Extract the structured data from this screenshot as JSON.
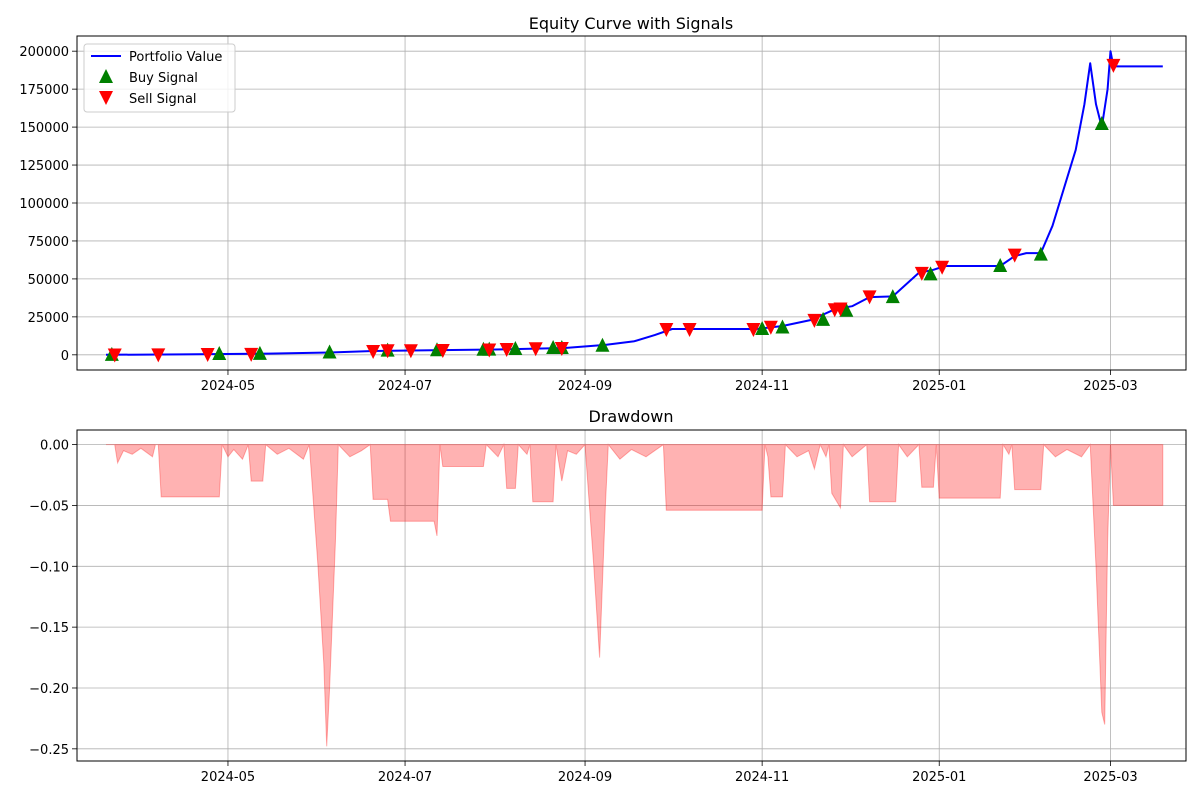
{
  "chart_data": [
    {
      "type": "line",
      "title": "Equity Curve with Signals",
      "xlabel": "",
      "ylabel": "",
      "x_tick_labels": [
        "2024-05",
        "2024-07",
        "2024-09",
        "2024-11",
        "2025-01",
        "2025-03"
      ],
      "y_tick_labels": [
        "0",
        "25000",
        "50000",
        "75000",
        "100000",
        "125000",
        "150000",
        "175000",
        "200000"
      ],
      "xlim": [
        "2024-03-10",
        "2025-03-27"
      ],
      "ylim": [
        -10000,
        210000
      ],
      "grid": true,
      "legend_position": "top-left",
      "series": [
        {
          "name": "Portfolio Value",
          "color": "#0000ff",
          "points": [
            [
              "2024-03-20",
              0
            ],
            [
              "2024-04-15",
              300
            ],
            [
              "2024-05-15",
              800
            ],
            [
              "2024-06-05",
              1500
            ],
            [
              "2024-06-20",
              2500
            ],
            [
              "2024-07-10",
              3000
            ],
            [
              "2024-08-01",
              3500
            ],
            [
              "2024-08-25",
              4500
            ],
            [
              "2024-09-08",
              6500
            ],
            [
              "2024-09-18",
              9000
            ],
            [
              "2024-09-25",
              13000
            ],
            [
              "2024-10-01",
              17000
            ],
            [
              "2024-10-30",
              17000
            ],
            [
              "2024-11-08",
              19000
            ],
            [
              "2024-11-18",
              23000
            ],
            [
              "2024-11-26",
              30000
            ],
            [
              "2024-12-02",
              32000
            ],
            [
              "2024-12-08",
              38000
            ],
            [
              "2024-12-16",
              38500
            ],
            [
              "2024-12-25",
              54000
            ],
            [
              "2024-12-30",
              56000
            ],
            [
              "2025-01-03",
              58500
            ],
            [
              "2025-01-22",
              58500
            ],
            [
              "2025-01-27",
              65000
            ],
            [
              "2025-01-31",
              67000
            ],
            [
              "2025-02-05",
              67000
            ],
            [
              "2025-02-09",
              85000
            ],
            [
              "2025-02-13",
              110000
            ],
            [
              "2025-02-17",
              135000
            ],
            [
              "2025-02-20",
              165000
            ],
            [
              "2025-02-22",
              192000
            ],
            [
              "2025-02-24",
              165000
            ],
            [
              "2025-02-26",
              150000
            ],
            [
              "2025-02-28",
              175000
            ],
            [
              "2025-03-01",
              200000
            ],
            [
              "2025-03-02",
              190000
            ],
            [
              "2025-03-19",
              190000
            ]
          ]
        },
        {
          "name": "Buy Signal",
          "color": "#008000",
          "marker": "triangle-up",
          "points": [
            [
              "2024-03-22",
              0
            ],
            [
              "2024-04-28",
              500
            ],
            [
              "2024-05-12",
              600
            ],
            [
              "2024-06-05",
              1500
            ],
            [
              "2024-06-25",
              2800
            ],
            [
              "2024-07-12",
              3000
            ],
            [
              "2024-07-28",
              3300
            ],
            [
              "2024-07-30",
              3400
            ],
            [
              "2024-08-08",
              3800
            ],
            [
              "2024-08-21",
              4500
            ],
            [
              "2024-08-24",
              4500
            ],
            [
              "2024-09-07",
              6000
            ],
            [
              "2024-11-01",
              17000
            ],
            [
              "2024-11-08",
              18000
            ],
            [
              "2024-11-22",
              23000
            ],
            [
              "2024-11-30",
              29000
            ],
            [
              "2024-12-16",
              38000
            ],
            [
              "2024-12-29",
              53000
            ],
            [
              "2025-01-22",
              58500
            ],
            [
              "2025-02-05",
              66000
            ],
            [
              "2025-02-26",
              152000
            ]
          ]
        },
        {
          "name": "Sell Signal",
          "color": "#ff0000",
          "marker": "triangle-down",
          "points": [
            [
              "2024-03-23",
              200
            ],
            [
              "2024-04-07",
              300
            ],
            [
              "2024-04-24",
              500
            ],
            [
              "2024-05-09",
              600
            ],
            [
              "2024-06-20",
              2500
            ],
            [
              "2024-06-25",
              3000
            ],
            [
              "2024-07-03",
              3000
            ],
            [
              "2024-07-14",
              3200
            ],
            [
              "2024-07-30",
              3500
            ],
            [
              "2024-08-05",
              3800
            ],
            [
              "2024-08-15",
              4300
            ],
            [
              "2024-08-24",
              4500
            ],
            [
              "2024-09-29",
              17000
            ],
            [
              "2024-10-07",
              17000
            ],
            [
              "2024-10-29",
              17000
            ],
            [
              "2024-11-04",
              18500
            ],
            [
              "2024-11-19",
              23000
            ],
            [
              "2024-11-26",
              30000
            ],
            [
              "2024-11-28",
              30500
            ],
            [
              "2024-12-08",
              38500
            ],
            [
              "2024-12-26",
              54000
            ],
            [
              "2025-01-02",
              58000
            ],
            [
              "2025-01-27",
              66000
            ],
            [
              "2025-03-02",
              191000
            ]
          ]
        }
      ]
    },
    {
      "type": "area",
      "title": "Drawdown",
      "xlabel": "",
      "ylabel": "",
      "x_tick_labels": [
        "2024-05",
        "2024-07",
        "2024-09",
        "2024-11",
        "2025-01",
        "2025-03"
      ],
      "y_tick_labels": [
        "0.00",
        "−0.05",
        "−0.10",
        "−0.15",
        "−0.20",
        "−0.25"
      ],
      "xlim": [
        "2024-03-10",
        "2025-03-27"
      ],
      "ylim": [
        -0.26,
        0.012
      ],
      "grid": true,
      "series": [
        {
          "color": "#ff0000",
          "fill_alpha": 0.3,
          "points": [
            [
              "2024-03-20",
              0
            ],
            [
              "2024-03-23",
              0
            ],
            [
              "2024-03-24",
              -0.015
            ],
            [
              "2024-03-26",
              -0.005
            ],
            [
              "2024-03-29",
              -0.008
            ],
            [
              "2024-04-01",
              -0.003
            ],
            [
              "2024-04-05",
              -0.01
            ],
            [
              "2024-04-06",
              0
            ],
            [
              "2024-04-07",
              0
            ],
            [
              "2024-04-08",
              -0.043
            ],
            [
              "2024-04-28",
              -0.043
            ],
            [
              "2024-04-29",
              0
            ],
            [
              "2024-05-01",
              -0.01
            ],
            [
              "2024-05-03",
              -0.004
            ],
            [
              "2024-05-06",
              -0.012
            ],
            [
              "2024-05-08",
              0
            ],
            [
              "2024-05-09",
              -0.03
            ],
            [
              "2024-05-13",
              -0.03
            ],
            [
              "2024-05-14",
              0
            ],
            [
              "2024-05-18",
              -0.008
            ],
            [
              "2024-05-22",
              -0.003
            ],
            [
              "2024-05-27",
              -0.012
            ],
            [
              "2024-05-29",
              0
            ],
            [
              "2024-06-01",
              -0.1
            ],
            [
              "2024-06-03",
              -0.18
            ],
            [
              "2024-06-04",
              -0.248
            ],
            [
              "2024-06-05",
              -0.2
            ],
            [
              "2024-06-07",
              -0.08
            ],
            [
              "2024-06-08",
              0
            ],
            [
              "2024-06-12",
              -0.01
            ],
            [
              "2024-06-16",
              -0.005
            ],
            [
              "2024-06-19",
              0
            ],
            [
              "2024-06-20",
              -0.045
            ],
            [
              "2024-06-25",
              -0.045
            ],
            [
              "2024-06-26",
              -0.063
            ],
            [
              "2024-07-11",
              -0.063
            ],
            [
              "2024-07-12",
              -0.075
            ],
            [
              "2024-07-13",
              0
            ],
            [
              "2024-07-14",
              -0.018
            ],
            [
              "2024-07-28",
              -0.018
            ],
            [
              "2024-07-29",
              0
            ],
            [
              "2024-08-02",
              -0.01
            ],
            [
              "2024-08-04",
              0
            ],
            [
              "2024-08-05",
              -0.036
            ],
            [
              "2024-08-08",
              -0.036
            ],
            [
              "2024-08-09",
              0
            ],
            [
              "2024-08-12",
              -0.008
            ],
            [
              "2024-08-13",
              0
            ],
            [
              "2024-08-14",
              -0.047
            ],
            [
              "2024-08-21",
              -0.047
            ],
            [
              "2024-08-22",
              0
            ],
            [
              "2024-08-24",
              -0.03
            ],
            [
              "2024-08-26",
              -0.005
            ],
            [
              "2024-08-29",
              -0.008
            ],
            [
              "2024-09-01",
              0
            ],
            [
              "2024-09-04",
              -0.1
            ],
            [
              "2024-09-06",
              -0.175
            ],
            [
              "2024-09-08",
              -0.05
            ],
            [
              "2024-09-09",
              0
            ],
            [
              "2024-09-13",
              -0.012
            ],
            [
              "2024-09-17",
              -0.004
            ],
            [
              "2024-09-22",
              -0.01
            ],
            [
              "2024-09-28",
              0
            ],
            [
              "2024-09-29",
              -0.054
            ],
            [
              "2024-11-01",
              -0.054
            ],
            [
              "2024-11-02",
              0
            ],
            [
              "2024-11-03",
              -0.01
            ],
            [
              "2024-11-04",
              -0.043
            ],
            [
              "2024-11-08",
              -0.043
            ],
            [
              "2024-11-09",
              0
            ],
            [
              "2024-11-13",
              -0.01
            ],
            [
              "2024-11-17",
              -0.005
            ],
            [
              "2024-11-19",
              -0.02
            ],
            [
              "2024-11-21",
              0
            ],
            [
              "2024-11-23",
              -0.01
            ],
            [
              "2024-11-24",
              0
            ],
            [
              "2024-11-25",
              -0.04
            ],
            [
              "2024-11-28",
              -0.052
            ],
            [
              "2024-11-29",
              0
            ],
            [
              "2024-12-02",
              -0.01
            ],
            [
              "2024-12-07",
              0
            ],
            [
              "2024-12-08",
              -0.047
            ],
            [
              "2024-12-17",
              -0.047
            ],
            [
              "2024-12-18",
              0
            ],
            [
              "2024-12-21",
              -0.01
            ],
            [
              "2024-12-25",
              0
            ],
            [
              "2024-12-26",
              -0.035
            ],
            [
              "2024-12-30",
              -0.035
            ],
            [
              "2024-12-31",
              0
            ],
            [
              "2025-01-01",
              -0.044
            ],
            [
              "2025-01-22",
              -0.044
            ],
            [
              "2025-01-23",
              0
            ],
            [
              "2025-01-25",
              -0.008
            ],
            [
              "2025-01-26",
              0
            ],
            [
              "2025-01-27",
              -0.037
            ],
            [
              "2025-02-05",
              -0.037
            ],
            [
              "2025-02-06",
              0
            ],
            [
              "2025-02-10",
              -0.01
            ],
            [
              "2025-02-14",
              -0.004
            ],
            [
              "2025-02-19",
              -0.01
            ],
            [
              "2025-02-22",
              0
            ],
            [
              "2025-02-24",
              -0.1
            ],
            [
              "2025-02-26",
              -0.22
            ],
            [
              "2025-02-27",
              -0.23
            ],
            [
              "2025-02-28",
              -0.08
            ],
            [
              "2025-03-01",
              0
            ],
            [
              "2025-03-02",
              -0.05
            ],
            [
              "2025-03-19",
              -0.05
            ],
            [
              "2025-03-19",
              0
            ]
          ]
        }
      ]
    }
  ]
}
